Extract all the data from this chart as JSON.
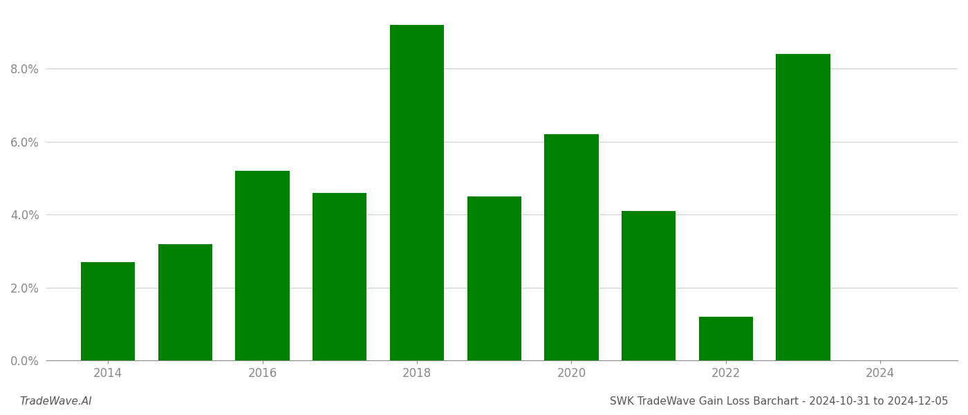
{
  "years": [
    2014,
    2015,
    2016,
    2017,
    2018,
    2019,
    2020,
    2021,
    2022,
    2023
  ],
  "values": [
    0.027,
    0.032,
    0.052,
    0.046,
    0.092,
    0.045,
    0.062,
    0.041,
    0.012,
    0.084
  ],
  "bar_color": "#008000",
  "title": "SWK TradeWave Gain Loss Barchart - 2024-10-31 to 2024-12-05",
  "watermark": "TradeWave.AI",
  "ylim": [
    0,
    0.096
  ],
  "yticks": [
    0.0,
    0.02,
    0.04,
    0.06,
    0.08
  ],
  "xlim": [
    2013.2,
    2025.0
  ],
  "xticks": [
    2014,
    2016,
    2018,
    2020,
    2022,
    2024
  ],
  "background_color": "#ffffff",
  "grid_color": "#cccccc",
  "tick_color": "#888888",
  "title_fontsize": 11,
  "watermark_fontsize": 11,
  "bar_width": 0.7
}
